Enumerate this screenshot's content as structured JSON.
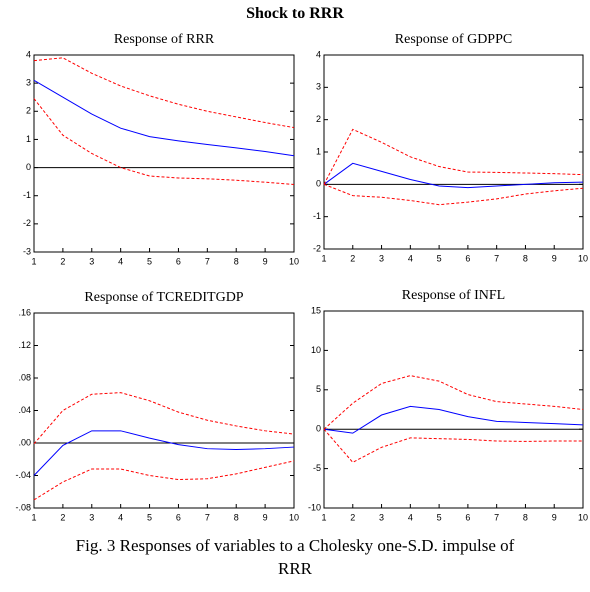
{
  "title": "Shock to RRR",
  "caption": [
    "Fig. 3 Responses of variables to a Cholesky one-S.D. impulse of",
    "RRR"
  ],
  "chart_data": [
    {
      "type": "line",
      "title": "Response of RRR",
      "x": [
        1,
        2,
        3,
        4,
        5,
        6,
        7,
        8,
        9,
        10
      ],
      "xlim": [
        1,
        10
      ],
      "xticks": [
        1,
        2,
        3,
        4,
        5,
        6,
        7,
        8,
        9,
        10
      ],
      "ylim": [
        -3,
        4
      ],
      "yticks": [
        -3,
        -2,
        -1,
        0,
        1,
        2,
        3,
        4
      ],
      "zero_line": true,
      "series": [
        {
          "color": "#0000ff",
          "dashed": false,
          "values": [
            3.1,
            2.5,
            1.9,
            1.4,
            1.1,
            0.95,
            0.82,
            0.7,
            0.57,
            0.42
          ]
        },
        {
          "color": "#ff0000",
          "dashed": true,
          "values": [
            3.8,
            3.9,
            3.35,
            2.9,
            2.55,
            2.25,
            2.0,
            1.8,
            1.6,
            1.42
          ]
        },
        {
          "color": "#ff0000",
          "dashed": true,
          "values": [
            2.45,
            1.15,
            0.5,
            0.0,
            -0.3,
            -0.37,
            -0.4,
            -0.45,
            -0.52,
            -0.6
          ]
        }
      ]
    },
    {
      "type": "line",
      "title": "Response of GDPPC",
      "x": [
        1,
        2,
        3,
        4,
        5,
        6,
        7,
        8,
        9,
        10
      ],
      "xlim": [
        1,
        10
      ],
      "xticks": [
        1,
        2,
        3,
        4,
        5,
        6,
        7,
        8,
        9,
        10
      ],
      "ylim": [
        -2,
        4
      ],
      "yticks": [
        -2,
        -1,
        0,
        1,
        2,
        3,
        4
      ],
      "zero_line": true,
      "series": [
        {
          "color": "#0000ff",
          "dashed": false,
          "values": [
            0,
            0.65,
            0.4,
            0.15,
            -0.05,
            -0.1,
            -0.05,
            0.0,
            0.05,
            0.07
          ]
        },
        {
          "color": "#ff0000",
          "dashed": true,
          "values": [
            0,
            1.7,
            1.3,
            0.85,
            0.55,
            0.38,
            0.37,
            0.35,
            0.33,
            0.3
          ]
        },
        {
          "color": "#ff0000",
          "dashed": true,
          "values": [
            0,
            -0.35,
            -0.4,
            -0.5,
            -0.63,
            -0.55,
            -0.45,
            -0.3,
            -0.2,
            -0.12
          ]
        }
      ]
    },
    {
      "type": "line",
      "title": "Response of TCREDITGDP",
      "x": [
        1,
        2,
        3,
        4,
        5,
        6,
        7,
        8,
        9,
        10
      ],
      "xlim": [
        1,
        10
      ],
      "xticks": [
        1,
        2,
        3,
        4,
        5,
        6,
        7,
        8,
        9,
        10
      ],
      "ylim": [
        -0.08,
        0.16
      ],
      "yticks": [
        {
          "value": -0.08,
          "label": "-.08"
        },
        {
          "value": -0.04,
          "label": "-.04"
        },
        {
          "value": 0,
          "label": ".00"
        },
        {
          "value": 0.04,
          "label": ".04"
        },
        {
          "value": 0.08,
          "label": ".08"
        },
        {
          "value": 0.12,
          "label": ".12"
        },
        {
          "value": 0.16,
          "label": ".16"
        }
      ],
      "zero_line": true,
      "series": [
        {
          "color": "#0000ff",
          "dashed": false,
          "values": [
            -0.04,
            -0.003,
            0.015,
            0.015,
            0.006,
            -0.002,
            -0.007,
            -0.008,
            -0.007,
            -0.005
          ]
        },
        {
          "color": "#ff0000",
          "dashed": true,
          "values": [
            -0.001,
            0.04,
            0.06,
            0.062,
            0.052,
            0.038,
            0.028,
            0.021,
            0.015,
            0.011
          ]
        },
        {
          "color": "#ff0000",
          "dashed": true,
          "values": [
            -0.07,
            -0.048,
            -0.032,
            -0.032,
            -0.04,
            -0.045,
            -0.044,
            -0.038,
            -0.03,
            -0.022
          ]
        }
      ]
    },
    {
      "type": "line",
      "title": "Response of INFL",
      "x": [
        1,
        2,
        3,
        4,
        5,
        6,
        7,
        8,
        9,
        10
      ],
      "xlim": [
        1,
        10
      ],
      "xticks": [
        1,
        2,
        3,
        4,
        5,
        6,
        7,
        8,
        9,
        10
      ],
      "ylim": [
        -10,
        15
      ],
      "yticks": [
        -10,
        -5,
        0,
        5,
        10,
        15
      ],
      "zero_line": true,
      "series": [
        {
          "color": "#0000ff",
          "dashed": false,
          "values": [
            0,
            -0.5,
            1.8,
            2.9,
            2.5,
            1.6,
            1.0,
            0.85,
            0.7,
            0.55
          ]
        },
        {
          "color": "#ff0000",
          "dashed": true,
          "values": [
            0,
            3.3,
            5.8,
            6.8,
            6.1,
            4.4,
            3.5,
            3.2,
            2.9,
            2.5
          ]
        },
        {
          "color": "#ff0000",
          "dashed": true,
          "values": [
            0,
            -4.2,
            -2.3,
            -1.1,
            -1.2,
            -1.3,
            -1.5,
            -1.55,
            -1.5,
            -1.5
          ]
        }
      ]
    }
  ]
}
